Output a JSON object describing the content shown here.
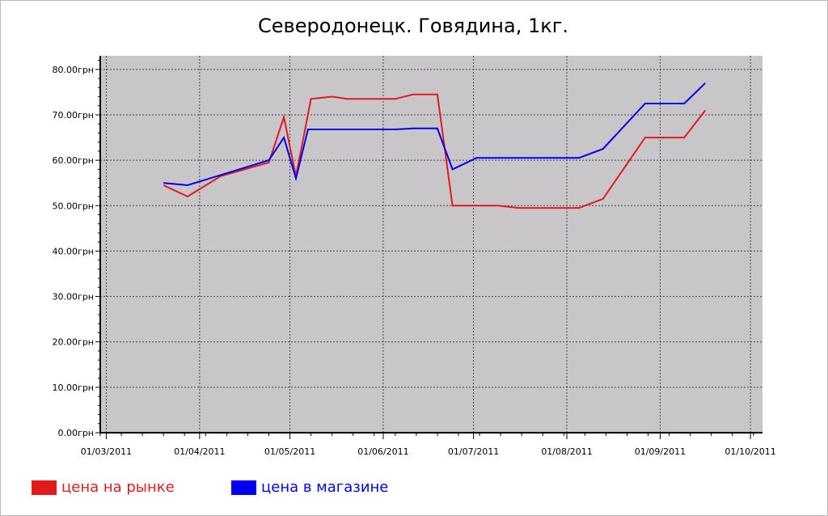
{
  "chart_data": {
    "type": "line",
    "title": "Северодонецк. Говядина, 1кг.",
    "y_unit_suffix": "грн",
    "ylim": [
      0,
      83
    ],
    "yticks": [
      "0.00грн",
      "10.00грн",
      "20.00грн",
      "30.00грн",
      "40.00грн",
      "50.00грн",
      "60.00грн",
      "70.00грн",
      "80.00грн"
    ],
    "ytick_values": [
      0,
      10,
      20,
      30,
      40,
      50,
      60,
      70,
      80
    ],
    "xlim": [
      "2011-02-27",
      "2011-10-05"
    ],
    "xticks": [
      {
        "date": "2011-03-01",
        "label": "01/03/2011"
      },
      {
        "date": "2011-04-01",
        "label": "01/04/2011"
      },
      {
        "date": "2011-05-01",
        "label": "01/05/2011"
      },
      {
        "date": "2011-06-01",
        "label": "01/06/2011"
      },
      {
        "date": "2011-07-01",
        "label": "01/07/2011"
      },
      {
        "date": "2011-08-01",
        "label": "01/08/2011"
      },
      {
        "date": "2011-09-01",
        "label": "01/09/2011"
      },
      {
        "date": "2011-10-01",
        "label": "01/10/2011"
      }
    ],
    "grid": true,
    "legend_position": "bottom-left",
    "series": [
      {
        "name": "цена на рынке",
        "color": "#e31a1c",
        "points": [
          [
            "2011-03-20",
            54.5
          ],
          [
            "2011-03-28",
            52.0
          ],
          [
            "2011-04-08",
            56.5
          ],
          [
            "2011-04-24",
            59.5
          ],
          [
            "2011-04-29",
            69.5
          ],
          [
            "2011-05-03",
            56.5
          ],
          [
            "2011-05-08",
            73.5
          ],
          [
            "2011-05-15",
            74.0
          ],
          [
            "2011-05-20",
            73.5
          ],
          [
            "2011-06-05",
            73.5
          ],
          [
            "2011-06-11",
            74.5
          ],
          [
            "2011-06-19",
            74.5
          ],
          [
            "2011-06-24",
            50.0
          ],
          [
            "2011-07-09",
            50.0
          ],
          [
            "2011-07-16",
            49.5
          ],
          [
            "2011-08-05",
            49.5
          ],
          [
            "2011-08-13",
            51.5
          ],
          [
            "2011-08-27",
            65.0
          ],
          [
            "2011-09-09",
            65.0
          ],
          [
            "2011-09-16",
            71.0
          ]
        ]
      },
      {
        "name": "цена в магазине",
        "color": "#0000ee",
        "points": [
          [
            "2011-03-20",
            55.0
          ],
          [
            "2011-03-28",
            54.5
          ],
          [
            "2011-04-24",
            60.0
          ],
          [
            "2011-04-29",
            65.0
          ],
          [
            "2011-05-03",
            56.0
          ],
          [
            "2011-05-07",
            66.8
          ],
          [
            "2011-05-20",
            66.8
          ],
          [
            "2011-06-05",
            66.8
          ],
          [
            "2011-06-11",
            67.0
          ],
          [
            "2011-06-19",
            67.0
          ],
          [
            "2011-06-24",
            58.0
          ],
          [
            "2011-07-02",
            60.5
          ],
          [
            "2011-07-16",
            60.5
          ],
          [
            "2011-08-05",
            60.5
          ],
          [
            "2011-08-13",
            62.5
          ],
          [
            "2011-08-27",
            72.5
          ],
          [
            "2011-09-09",
            72.5
          ],
          [
            "2011-09-16",
            77.0
          ]
        ]
      }
    ]
  }
}
